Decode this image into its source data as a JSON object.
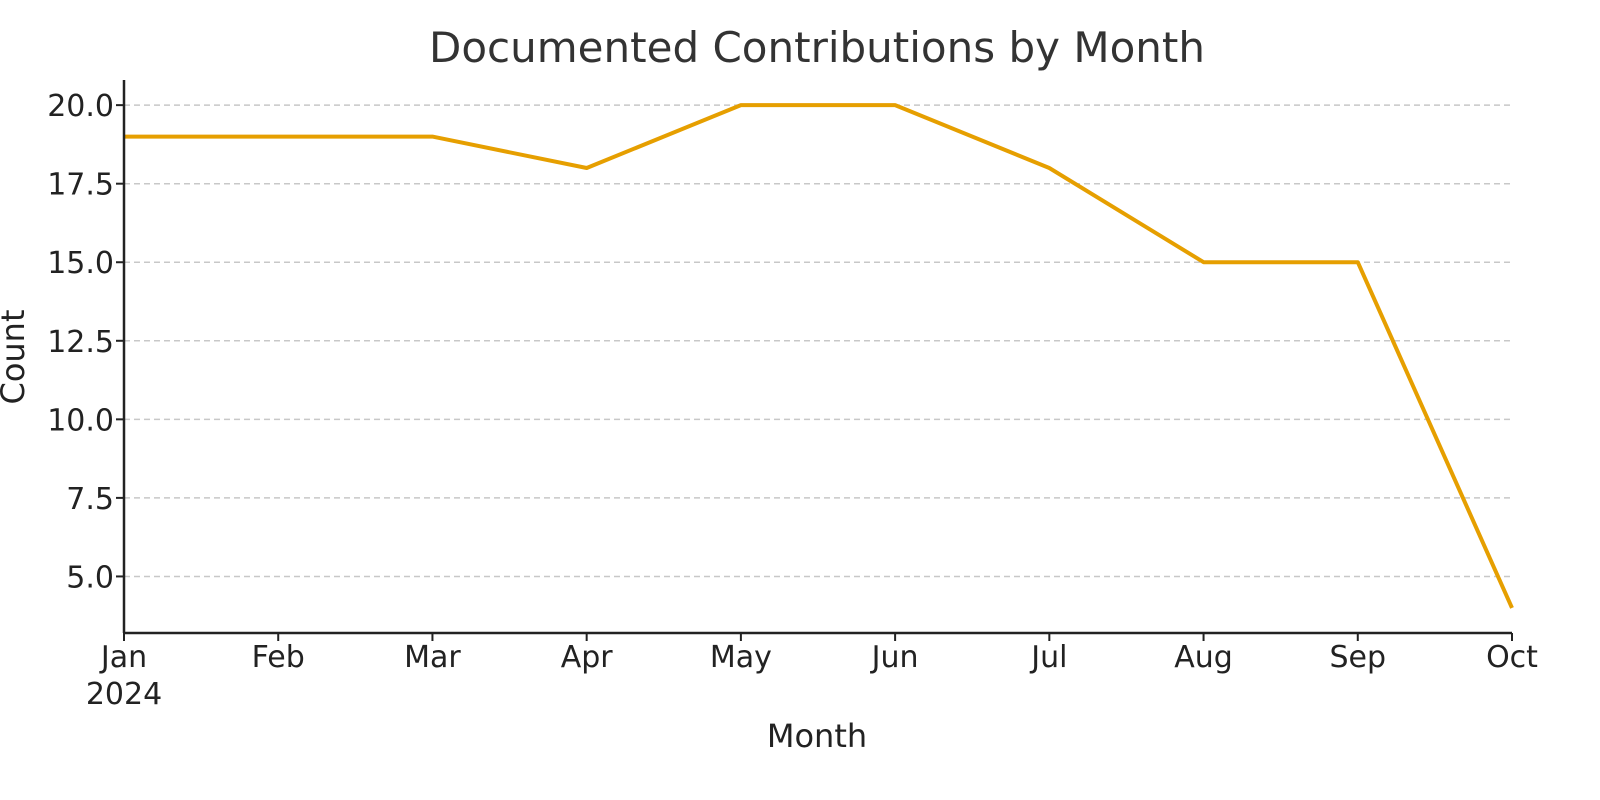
{
  "chart_data": {
    "type": "line",
    "title": "Documented Contributions by Month",
    "xlabel": "Month",
    "ylabel": "Count",
    "categories": [
      "2024-01",
      "2024-02",
      "2024-03",
      "2024-04",
      "2024-05",
      "2024-06",
      "2024-07",
      "2024-08",
      "2024-09",
      "2024-10"
    ],
    "x_tick_labels": [
      "Jan",
      "Feb",
      "Mar",
      "Apr",
      "May",
      "Jun",
      "Jul",
      "Aug",
      "Sep",
      "Oct"
    ],
    "x_year_label": "2024",
    "series": [
      {
        "values": [
          19,
          19,
          19,
          18,
          20,
          20,
          18,
          15,
          15,
          4
        ],
        "color": "#e69f00"
      }
    ],
    "ylim": [
      3.2,
      20.8
    ],
    "y_ticks": [
      "5.0",
      "7.5",
      "10.0",
      "12.5",
      "15.0",
      "17.5",
      "20.0"
    ],
    "grid": "horizontal dashed",
    "legend": "none"
  }
}
